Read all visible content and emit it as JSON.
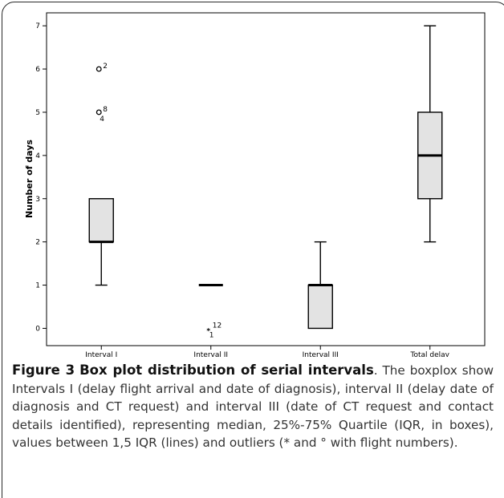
{
  "chart_data": {
    "type": "boxplot",
    "ylabel": "Number of days",
    "xlabel": "",
    "ylim": [
      -0.4,
      7.3
    ],
    "yticks": [
      0,
      1,
      2,
      3,
      4,
      5,
      6,
      7
    ],
    "categories": [
      "Interval I",
      "Interval II",
      "Interval III",
      "Total delay"
    ],
    "boxes": [
      {
        "name": "Interval I",
        "whisker_low": 1,
        "q1": 2,
        "median": 2,
        "q3": 3,
        "whisker_high": 3,
        "outliers": [
          {
            "value": 6,
            "marker": "circle",
            "labels": [
              "2"
            ]
          },
          {
            "value": 5,
            "marker": "circle",
            "labels": [
              "8",
              "4"
            ]
          }
        ]
      },
      {
        "name": "Interval II",
        "whisker_low": 1,
        "q1": 1,
        "median": 1,
        "q3": 1,
        "whisker_high": 1,
        "outliers": [
          {
            "value": 0,
            "marker": "star",
            "labels": [
              "12",
              "1"
            ]
          }
        ]
      },
      {
        "name": "Interval III",
        "whisker_low": 0,
        "q1": 0,
        "median": 1,
        "q3": 1,
        "whisker_high": 2,
        "outliers": []
      },
      {
        "name": "Total delay",
        "whisker_low": 2,
        "q1": 3,
        "median": 4,
        "q3": 5,
        "whisker_high": 7,
        "outliers": []
      }
    ],
    "grid": false,
    "legend": "none",
    "colors": {
      "box_fill": "#e3e3e3",
      "box_stroke": "#000000",
      "plot_background": "#ffffff"
    }
  },
  "caption": {
    "label": "Figure 3",
    "title": "Box plot distribution of serial intervals",
    "text": ". The boxplox show Intervals I (delay flight arrival and date of diagnosis), interval II (delay date of diagnosis and CT request) and interval III (date of CT request and contact details identified), representing median, 25%-75% Quartile (IQR, in boxes), values between 1,5 IQR (lines) and outliers (* and ° with flight numbers)."
  }
}
